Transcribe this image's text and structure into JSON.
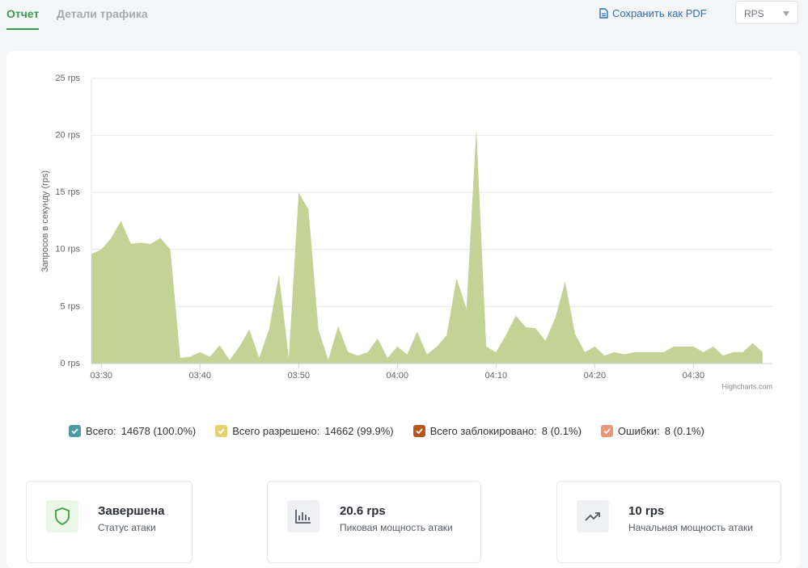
{
  "tabs": [
    "Отчет",
    "Детали трафика"
  ],
  "toolbar": {
    "save_pdf": "Сохранить как PDF",
    "metric_select": "RPS"
  },
  "chart_data": {
    "type": "area",
    "y_axis_label": "Запросов в секунду (rps)",
    "credits": "Highcharts.com",
    "color": "#c4d295",
    "x": [
      "03:29",
      "03:30",
      "03:31",
      "03:32",
      "03:33",
      "03:34",
      "03:35",
      "03:36",
      "03:37",
      "03:38",
      "03:39",
      "03:40",
      "03:41",
      "03:42",
      "03:43",
      "03:44",
      "03:45",
      "03:46",
      "03:47",
      "03:48",
      "03:49",
      "03:50",
      "03:51",
      "03:52",
      "03:53",
      "03:54",
      "03:55",
      "03:56",
      "03:57",
      "03:58",
      "03:59",
      "04:00",
      "04:01",
      "04:02",
      "04:03",
      "04:04",
      "04:05",
      "04:06",
      "04:07",
      "04:08",
      "04:09",
      "04:10",
      "04:11",
      "04:12",
      "04:13",
      "04:14",
      "04:15",
      "04:16",
      "04:17",
      "04:18",
      "04:19",
      "04:20",
      "04:21",
      "04:22",
      "04:23",
      "04:24",
      "04:25",
      "04:26",
      "04:27",
      "04:28",
      "04:29",
      "04:30",
      "04:31",
      "04:32",
      "04:33",
      "04:34",
      "04:35",
      "04:36",
      "04:37"
    ],
    "values": [
      9.6,
      10,
      11,
      12.5,
      10.5,
      10.6,
      10.5,
      11,
      10,
      0.5,
      0.6,
      1,
      0.6,
      1.6,
      0.3,
      1.5,
      3,
      0.5,
      3,
      7.8,
      0.5,
      15,
      13.5,
      3,
      0.3,
      3.3,
      1,
      0.7,
      1,
      2.2,
      0.5,
      1.5,
      0.8,
      2.8,
      0.8,
      1.5,
      2.5,
      7.5,
      4.8,
      20.6,
      1.5,
      1,
      2.5,
      4.2,
      3.2,
      3.1,
      2,
      4,
      7.2,
      2.6,
      1,
      1.5,
      0.7,
      1,
      0.8,
      1,
      1,
      1,
      1,
      1.5,
      1.5,
      1.5,
      1,
      1.5,
      0.7,
      1,
      1,
      1.8,
      1
    ],
    "xlim": [
      "03:29",
      "04:38"
    ],
    "xticks": [
      "03:30",
      "03:40",
      "03:50",
      "04:00",
      "04:10",
      "04:20",
      "04:30"
    ],
    "ylim": [
      0,
      25
    ],
    "yticks": [
      {
        "value": 0,
        "label": "0 rps"
      },
      {
        "value": 5,
        "label": "5 rps"
      },
      {
        "value": 10,
        "label": "10 rps"
      },
      {
        "value": 15,
        "label": "15 rps"
      },
      {
        "value": 20,
        "label": "20 rps"
      },
      {
        "value": 25,
        "label": "25 rps"
      }
    ],
    "grid": true
  },
  "legend": [
    {
      "label": "Всего:",
      "value": "14678 (100.0%)",
      "color": "#4a9aa8"
    },
    {
      "label": "Всего разрешено:",
      "value": "14662 (99.9%)",
      "color": "#e6d16f"
    },
    {
      "label": "Всего заблокировано:",
      "value": "8 (0.1%)",
      "color": "#b5561f"
    },
    {
      "label": "Ошибки:",
      "value": "8 (0.1%)",
      "color": "#e8957a"
    }
  ],
  "stats": [
    {
      "value": "Завершена",
      "label": "Статус атаки"
    },
    {
      "value": "20.6 rps",
      "label": "Пиковая мощность атаки"
    },
    {
      "value": "10 rps",
      "label": "Начальная мощность атаки"
    }
  ]
}
